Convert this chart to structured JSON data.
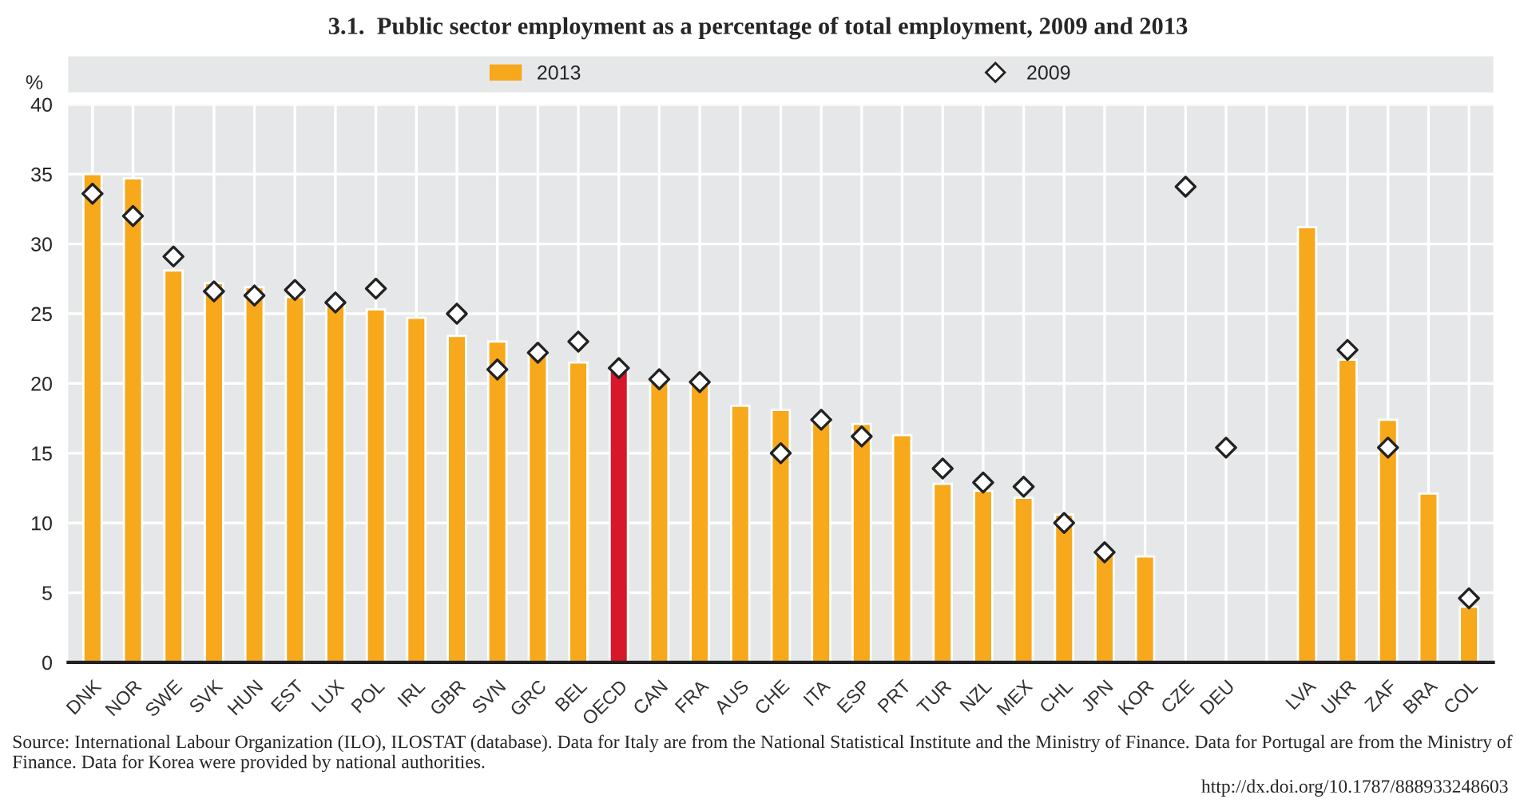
{
  "chart_data": {
    "type": "bar",
    "title": "3.1.  Public sector employment as a percentage of total employment, 2009 and 2013",
    "ylabel": "%",
    "categories": [
      "DNK",
      "NOR",
      "SWE",
      "SVK",
      "HUN",
      "EST",
      "LUX",
      "POL",
      "IRL",
      "GBR",
      "SVN",
      "GRC",
      "BEL",
      "OECD",
      "CAN",
      "FRA",
      "AUS",
      "CHE",
      "ITA",
      "ESP",
      "PRT",
      "TUR",
      "NZL",
      "MEX",
      "CHL",
      "JPN",
      "KOR",
      "CZE",
      "DEU",
      null,
      "LVA",
      "UKR",
      "ZAF",
      "BRA",
      "COL"
    ],
    "series": [
      {
        "name": "2013",
        "color": "#f7a81b",
        "colors": [
          "#f7a81b",
          "#f7a81b",
          "#f7a81b",
          "#f7a81b",
          "#f7a81b",
          "#f7a81b",
          "#f7a81b",
          "#f7a81b",
          "#f7a81b",
          "#f7a81b",
          "#f7a81b",
          "#f7a81b",
          "#f7a81b",
          "#d7182a",
          "#f7a81b",
          "#f7a81b",
          "#f7a81b",
          "#f7a81b",
          "#f7a81b",
          "#f7a81b",
          "#f7a81b",
          "#f7a81b",
          "#f7a81b",
          "#f7a81b",
          "#f7a81b",
          "#f7a81b",
          "#f7a81b",
          "#f7a81b",
          "#f7a81b",
          "#f7a81b",
          "#f7a81b",
          "#f7a81b",
          "#f7a81b",
          "#f7a81b",
          "#f7a81b"
        ],
        "values": [
          35.0,
          34.7,
          28.1,
          27.2,
          26.9,
          26.2,
          25.7,
          25.3,
          24.7,
          23.4,
          23.0,
          22.2,
          21.5,
          20.9,
          20.3,
          20.0,
          18.4,
          18.1,
          17.6,
          17.1,
          16.3,
          12.8,
          12.3,
          11.8,
          10.6,
          7.9,
          7.6,
          null,
          null,
          null,
          31.2,
          21.7,
          17.4,
          12.1,
          4.0
        ]
      },
      {
        "name": "2009",
        "type": "scatter",
        "marker": "diamond",
        "color": "#ffffff",
        "values": [
          33.6,
          32.0,
          29.1,
          26.6,
          26.3,
          26.7,
          25.8,
          26.8,
          null,
          25.0,
          21.0,
          22.2,
          23.0,
          21.1,
          20.3,
          20.1,
          null,
          15.0,
          17.4,
          16.2,
          null,
          13.9,
          12.9,
          12.6,
          10.0,
          7.9,
          null,
          34.1,
          15.4,
          null,
          null,
          22.4,
          15.4,
          null,
          4.6
        ]
      }
    ],
    "ylim": [
      0,
      40
    ],
    "yticks": [
      0,
      5,
      10,
      15,
      20,
      25,
      30,
      35,
      40
    ],
    "grid": true,
    "legend": "top",
    "annotations": [
      "Source: International Labour Organization (ILO), ILOSTAT (database). Data for Italy are from the National Statistical Institute and the Ministry of Finance. Data for Portugal are from the Ministry of Finance. Data for Korea were provided by national authorities.",
      "http://dx.doi.org/10.1787/888933248603"
    ]
  }
}
